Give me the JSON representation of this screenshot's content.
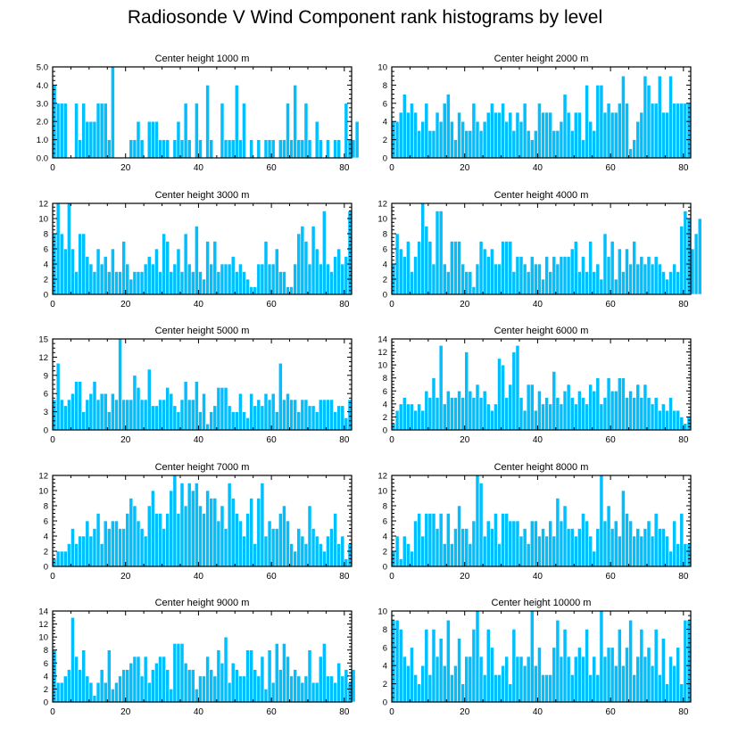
{
  "title": "Radiosonde V Wind Component rank histograms by level",
  "colors": {
    "bar": "#00bfff",
    "bar_edge": "#ffffff",
    "axis": "#000000",
    "background": "#ffffff"
  },
  "chart_data": [
    {
      "type": "bar",
      "title": "Center height 1000 m",
      "xlim": [
        0,
        82
      ],
      "ylim": [
        0,
        5
      ],
      "xticks": [
        0,
        20,
        40,
        60,
        80
      ],
      "yticks": [
        0,
        1,
        2,
        3,
        4,
        5
      ],
      "ytick_labels": [
        "0.0",
        "1.0",
        "2.0",
        "3.0",
        "4.0",
        "5.0"
      ],
      "values": [
        4,
        3,
        3,
        3,
        0,
        0,
        3,
        1,
        3,
        2,
        2,
        2,
        3,
        3,
        3,
        1,
        5,
        0,
        0,
        0,
        0,
        1,
        1,
        2,
        1,
        0,
        2,
        2,
        2,
        1,
        1,
        1,
        0,
        1,
        2,
        1,
        3,
        1,
        0,
        3,
        1,
        0,
        4,
        1,
        0,
        0,
        3,
        1,
        1,
        1,
        4,
        1,
        3,
        0,
        1,
        0,
        1,
        0,
        1,
        1,
        1,
        0,
        1,
        1,
        3,
        1,
        4,
        1,
        1,
        3,
        1,
        0,
        2,
        1,
        0,
        1,
        0,
        1,
        1,
        0,
        3,
        1,
        1,
        2
      ]
    },
    {
      "type": "bar",
      "title": "Center height 2000 m",
      "xlim": [
        0,
        82
      ],
      "ylim": [
        0,
        10
      ],
      "xticks": [
        0,
        20,
        40,
        60,
        80
      ],
      "yticks": [
        0,
        2,
        4,
        6,
        8,
        10
      ],
      "ytick_labels": [
        "0",
        "2",
        "4",
        "6",
        "8",
        "10"
      ],
      "values": [
        4,
        4,
        5,
        7,
        5,
        6,
        5,
        3,
        4,
        6,
        3,
        3,
        5,
        4,
        6,
        7,
        4,
        2,
        5,
        4,
        3,
        3,
        6,
        4,
        3,
        4,
        5,
        6,
        5,
        5,
        6,
        4,
        5,
        3,
        5,
        4,
        6,
        3,
        2,
        3,
        6,
        5,
        5,
        5,
        3,
        3,
        4,
        7,
        5,
        3,
        5,
        5,
        2,
        8,
        4,
        3,
        8,
        8,
        5,
        6,
        5,
        5,
        6,
        9,
        6,
        1,
        2,
        4,
        5,
        9,
        8,
        6,
        6,
        9,
        5,
        5,
        9,
        6,
        6,
        6,
        6,
        6
      ]
    },
    {
      "type": "bar",
      "title": "Center height 3000 m",
      "xlim": [
        0,
        82
      ],
      "ylim": [
        0,
        12
      ],
      "xticks": [
        0,
        20,
        40,
        60,
        80
      ],
      "yticks": [
        0,
        2,
        4,
        6,
        8,
        10,
        12
      ],
      "ytick_labels": [
        "0",
        "2",
        "4",
        "6",
        "8",
        "10",
        "12"
      ],
      "values": [
        8,
        12,
        8,
        6,
        12,
        6,
        3,
        8,
        8,
        5,
        4,
        3,
        6,
        4,
        5,
        3,
        6,
        3,
        3,
        7,
        4,
        2,
        3,
        3,
        3,
        4,
        5,
        4,
        6,
        3,
        8,
        7,
        3,
        4,
        6,
        3,
        8,
        4,
        3,
        9,
        3,
        2,
        7,
        4,
        7,
        3,
        4,
        4,
        4,
        5,
        3,
        4,
        3,
        2,
        1,
        1,
        4,
        4,
        7,
        4,
        4,
        6,
        3,
        3,
        1,
        1,
        4,
        8,
        9,
        7,
        4,
        9,
        6,
        4,
        11,
        4,
        3,
        5,
        6,
        4,
        5,
        11
      ]
    },
    {
      "type": "bar",
      "title": "Center height 4000 m",
      "xlim": [
        0,
        82
      ],
      "ylim": [
        0,
        12
      ],
      "xticks": [
        0,
        20,
        40,
        60,
        80
      ],
      "yticks": [
        0,
        2,
        4,
        6,
        8,
        10,
        12
      ],
      "ytick_labels": [
        "0",
        "2",
        "4",
        "6",
        "8",
        "10",
        "12"
      ],
      "values": [
        4,
        8,
        6,
        5,
        7,
        3,
        5,
        7,
        12,
        9,
        7,
        4,
        11,
        11,
        4,
        3,
        7,
        7,
        7,
        4,
        3,
        3,
        1,
        4,
        7,
        6,
        5,
        6,
        4,
        4,
        7,
        7,
        7,
        3,
        5,
        5,
        4,
        3,
        5,
        4,
        4,
        2,
        5,
        3,
        5,
        4,
        5,
        5,
        5,
        6,
        7,
        3,
        5,
        3,
        7,
        3,
        4,
        2,
        8,
        5,
        7,
        2,
        6,
        3,
        6,
        4,
        7,
        4,
        5,
        4,
        5,
        4,
        5,
        4,
        3,
        2,
        3,
        4,
        3,
        9,
        11,
        10,
        6,
        8,
        10
      ]
    },
    {
      "type": "bar",
      "title": "Center height 5000 m",
      "xlim": [
        0,
        82
      ],
      "ylim": [
        0,
        15
      ],
      "xticks": [
        0,
        20,
        40,
        60,
        80
      ],
      "yticks": [
        0,
        3,
        6,
        9,
        12,
        15
      ],
      "ytick_labels": [
        "0",
        "3",
        "6",
        "9",
        "12",
        "15"
      ],
      "values": [
        5,
        11,
        5,
        4,
        5,
        6,
        8,
        8,
        3,
        5,
        6,
        8,
        5,
        6,
        6,
        3,
        6,
        5,
        15,
        5,
        5,
        5,
        9,
        7,
        5,
        5,
        10,
        4,
        4,
        5,
        5,
        7,
        6,
        4,
        3,
        5,
        8,
        5,
        5,
        8,
        3,
        6,
        1,
        3,
        4,
        7,
        7,
        7,
        4,
        3,
        3,
        6,
        3,
        2,
        6,
        4,
        5,
        4,
        6,
        5,
        6,
        3,
        11,
        5,
        6,
        5,
        5,
        3,
        5,
        5,
        4,
        4,
        3,
        5,
        5,
        5,
        5,
        3,
        4,
        4,
        2,
        5
      ]
    },
    {
      "type": "bar",
      "title": "Center height 6000 m",
      "xlim": [
        0,
        82
      ],
      "ylim": [
        0,
        14
      ],
      "xticks": [
        0,
        20,
        40,
        60,
        80
      ],
      "yticks": [
        0,
        2,
        4,
        6,
        8,
        10,
        12,
        14
      ],
      "ytick_labels": [
        "0",
        "2",
        "4",
        "6",
        "8",
        "10",
        "12",
        "14"
      ],
      "values": [
        1,
        3,
        4,
        5,
        4,
        4,
        3,
        4,
        3,
        6,
        5,
        8,
        5,
        13,
        4,
        6,
        5,
        5,
        6,
        5,
        12,
        6,
        5,
        7,
        5,
        6,
        4,
        3,
        4,
        11,
        10,
        5,
        7,
        12,
        13,
        5,
        3,
        7,
        7,
        3,
        6,
        4,
        5,
        4,
        9,
        5,
        4,
        6,
        7,
        5,
        4,
        6,
        5,
        4,
        7,
        6,
        8,
        4,
        5,
        8,
        6,
        6,
        8,
        8,
        5,
        6,
        5,
        7,
        5,
        7,
        5,
        4,
        5,
        3,
        4,
        3,
        5,
        3,
        3,
        2,
        1,
        2
      ]
    },
    {
      "type": "bar",
      "title": "Center height 7000 m",
      "xlim": [
        0,
        82
      ],
      "ylim": [
        0,
        12
      ],
      "xticks": [
        0,
        20,
        40,
        60,
        80
      ],
      "yticks": [
        0,
        2,
        4,
        6,
        8,
        10,
        12
      ],
      "ytick_labels": [
        "0",
        "2",
        "4",
        "6",
        "8",
        "10",
        "12"
      ],
      "values": [
        1,
        2,
        2,
        2,
        3,
        5,
        3,
        4,
        4,
        6,
        4,
        5,
        7,
        3,
        6,
        5,
        6,
        6,
        5,
        5,
        7,
        9,
        8,
        6,
        5,
        4,
        8,
        10,
        7,
        7,
        5,
        7,
        10,
        12,
        7,
        11,
        8,
        11,
        10,
        11,
        8,
        7,
        10,
        9,
        9,
        6,
        8,
        5,
        11,
        9,
        7,
        6,
        4,
        7,
        9,
        3,
        9,
        11,
        4,
        6,
        5,
        5,
        7,
        8,
        6,
        3,
        2,
        5,
        4,
        3,
        8,
        5,
        4,
        3,
        2,
        4,
        5,
        7,
        3,
        4,
        1,
        3
      ]
    },
    {
      "type": "bar",
      "title": "Center height 8000 m",
      "xlim": [
        0,
        82
      ],
      "ylim": [
        0,
        12
      ],
      "xticks": [
        0,
        20,
        40,
        60,
        80
      ],
      "yticks": [
        0,
        2,
        4,
        6,
        8,
        10,
        12
      ],
      "ytick_labels": [
        "0",
        "2",
        "4",
        "6",
        "8",
        "10",
        "12"
      ],
      "values": [
        2,
        4,
        1,
        4,
        3,
        2,
        6,
        7,
        4,
        7,
        7,
        7,
        5,
        7,
        3,
        7,
        3,
        5,
        8,
        5,
        5,
        3,
        6,
        12,
        11,
        4,
        6,
        5,
        7,
        3,
        7,
        7,
        6,
        6,
        6,
        4,
        5,
        3,
        6,
        6,
        4,
        5,
        4,
        6,
        4,
        9,
        6,
        8,
        5,
        5,
        4,
        5,
        7,
        6,
        4,
        2,
        5,
        12,
        6,
        8,
        5,
        6,
        4,
        10,
        7,
        6,
        4,
        5,
        4,
        5,
        6,
        4,
        7,
        5,
        5,
        4,
        2,
        6,
        3,
        7,
        3,
        3
      ]
    },
    {
      "type": "bar",
      "title": "Center height 9000 m",
      "xlim": [
        0,
        82
      ],
      "ylim": [
        0,
        14
      ],
      "xticks": [
        0,
        20,
        40,
        60,
        80
      ],
      "yticks": [
        0,
        2,
        4,
        6,
        8,
        10,
        12,
        14
      ],
      "ytick_labels": [
        "0",
        "2",
        "4",
        "6",
        "8",
        "10",
        "12",
        "14"
      ],
      "values": [
        8,
        3,
        3,
        4,
        5,
        13,
        7,
        5,
        8,
        4,
        3,
        1,
        3,
        5,
        3,
        8,
        2,
        3,
        4,
        5,
        5,
        6,
        7,
        7,
        4,
        7,
        3,
        5,
        6,
        7,
        7,
        5,
        2,
        9,
        9,
        9,
        6,
        5,
        5,
        2,
        4,
        4,
        7,
        5,
        4,
        8,
        6,
        10,
        3,
        6,
        5,
        4,
        4,
        8,
        8,
        5,
        4,
        7,
        2,
        8,
        3,
        9,
        5,
        9,
        7,
        4,
        5,
        4,
        3,
        4,
        8,
        3,
        3,
        7,
        9,
        4,
        4,
        3,
        6,
        4,
        5,
        3,
        5
      ]
    },
    {
      "type": "bar",
      "title": "Center height 10000 m",
      "xlim": [
        0,
        82
      ],
      "ylim": [
        0,
        10
      ],
      "xticks": [
        0,
        20,
        40,
        60,
        80
      ],
      "yticks": [
        0,
        2,
        4,
        6,
        8,
        10
      ],
      "ytick_labels": [
        "0",
        "2",
        "4",
        "6",
        "8",
        "10"
      ],
      "values": [
        9,
        9,
        8,
        5,
        4,
        6,
        3,
        2,
        4,
        8,
        3,
        8,
        5,
        7,
        4,
        9,
        3,
        4,
        7,
        2,
        5,
        5,
        8,
        10,
        5,
        3,
        8,
        6,
        3,
        3,
        4,
        5,
        2,
        8,
        5,
        5,
        4,
        5,
        10,
        4,
        6,
        3,
        3,
        3,
        6,
        9,
        5,
        8,
        5,
        3,
        5,
        6,
        5,
        8,
        3,
        5,
        3,
        10,
        5,
        6,
        6,
        4,
        8,
        4,
        6,
        9,
        3,
        5,
        8,
        5,
        6,
        4,
        8,
        3,
        7,
        2,
        5,
        4,
        6,
        2,
        9,
        9
      ]
    }
  ]
}
